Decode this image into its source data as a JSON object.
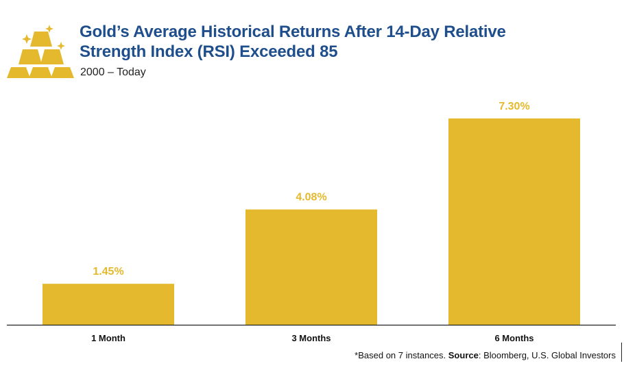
{
  "header": {
    "title_line1": "Gold’s Average Historical Returns After 14-Day Relative",
    "title_line2": "Strength Index (RSI) Exceeded 85",
    "subtitle": "2000 – Today",
    "logo_icon": "gold-bars-icon"
  },
  "chart_data": {
    "type": "bar",
    "title": "Gold’s Average Historical Returns After 14-Day Relative Strength Index (RSI) Exceeded 85",
    "subtitle": "2000 – Today",
    "categories": [
      "1 Month",
      "3 Months",
      "6 Months"
    ],
    "values": [
      1.45,
      4.08,
      7.3
    ],
    "value_labels": [
      "1.45%",
      "4.08%",
      "7.30%"
    ],
    "xlabel": "",
    "ylabel": "",
    "ylim": [
      0,
      8
    ],
    "grid": false,
    "legend": "none",
    "bar_color": "#e5b92e",
    "label_color": "#e5b92e",
    "axis_color": "#222222"
  },
  "footnote": {
    "prefix": "*Based on 7 instances. ",
    "source_label": "Source",
    "source_text": ": Bloomberg, U.S. Global Investors"
  },
  "colors": {
    "title": "#1f4e8c",
    "gold": "#e5b92e"
  }
}
